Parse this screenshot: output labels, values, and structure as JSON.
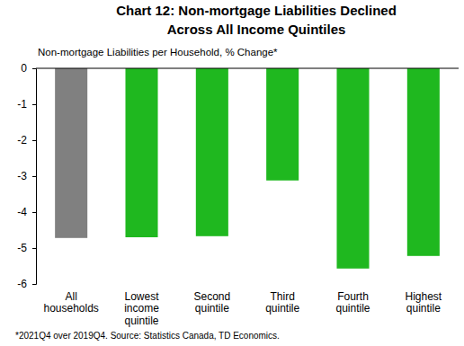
{
  "chart_data": {
    "type": "bar",
    "title": [
      "Chart 12: Non-mortgage Liabilities  Declined",
      "Across All Income Quintiles"
    ],
    "y_label": "Non-mortgage Liabilities per Household, % Change*",
    "footnote": "*2021Q4 over 2019Q4. Source: Statistics Canada, TD Economics.",
    "categories": [
      "All\nhouseholds",
      "Lowest\nincome\nquintile",
      "Second\nquintile",
      "Third\nquintile",
      "Fourth\nquintile",
      "Highest\nquintile"
    ],
    "values": [
      -4.72,
      -4.7,
      -4.67,
      -3.12,
      -5.57,
      -5.22
    ],
    "colors": [
      "#808080",
      "#1fb81f",
      "#1fb81f",
      "#1fb81f",
      "#1fb81f",
      "#1fb81f"
    ],
    "ylim": [
      -6,
      0
    ],
    "yticks": [
      0,
      -1,
      -2,
      -3,
      -4,
      -5,
      -6
    ],
    "grid": false
  }
}
